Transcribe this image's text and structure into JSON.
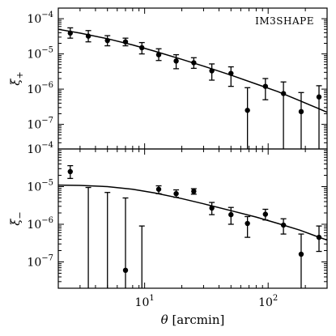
{
  "chart_data": [
    {
      "type": "scatter",
      "panel_tag": "IM3SHAPE",
      "ylabel": "ξ+",
      "xlabel": "",
      "xscale": "log",
      "yscale": "log",
      "xlim": [
        2.0,
        300
      ],
      "ylim": [
        2e-08,
        0.0002
      ],
      "y_tick_labels": [
        {
          "value": 1e-07,
          "base": "10",
          "exp": "−7"
        },
        {
          "value": 1e-06,
          "base": "10",
          "exp": "−6"
        },
        {
          "value": 1e-05,
          "base": "10",
          "exp": "−5"
        },
        {
          "value": 0.0001,
          "base": "10",
          "exp": "−4"
        }
      ],
      "x_tick_labels": [],
      "series": [
        {
          "points": [
            {
              "x": 2.5,
              "y": 3.9e-05,
              "ylo": 2.8e-05,
              "yhi": 5.5e-05
            },
            {
              "x": 3.5,
              "y": 3.2e-05,
              "ylo": 2.2e-05,
              "yhi": 4.6e-05
            },
            {
              "x": 5.0,
              "y": 2.4e-05,
              "ylo": 1.7e-05,
              "yhi": 3.3e-05
            },
            {
              "x": 7.0,
              "y": 2.2e-05,
              "ylo": 1.7e-05,
              "yhi": 2.8e-05
            },
            {
              "x": 9.5,
              "y": 1.5e-05,
              "ylo": 1e-05,
              "yhi": 2.1e-05
            },
            {
              "x": 13,
              "y": 9.5e-06,
              "ylo": 6.5e-06,
              "yhi": 1.4e-05
            },
            {
              "x": 18,
              "y": 6.3e-06,
              "ylo": 3.8e-06,
              "yhi": 9.5e-06
            },
            {
              "x": 25,
              "y": 5.6e-06,
              "ylo": 3.9e-06,
              "yhi": 7.8e-06
            },
            {
              "x": 35,
              "y": 3.3e-06,
              "ylo": 1.8e-06,
              "yhi": 5.2e-06
            },
            {
              "x": 50,
              "y": 2.8e-06,
              "ylo": 1.2e-06,
              "yhi": 4.3e-06
            },
            {
              "x": 68,
              "y": 2.5e-07,
              "ylo": 2e-08,
              "yhi": 1.1e-06
            },
            {
              "x": 95,
              "y": 1.2e-06,
              "ylo": 5e-07,
              "yhi": 2e-06
            },
            {
              "x": 133,
              "y": 7.5e-07,
              "ylo": 2e-08,
              "yhi": 1.6e-06
            },
            {
              "x": 185,
              "y": 2.3e-07,
              "ylo": 2e-08,
              "yhi": 8e-07
            },
            {
              "x": 258,
              "y": 6e-07,
              "ylo": 2e-08,
              "yhi": 1.25e-06
            }
          ]
        }
      ],
      "model_curve": [
        [
          2.0,
          5e-05
        ],
        [
          3.0,
          3.9e-05
        ],
        [
          5.0,
          2.7e-05
        ],
        [
          8.0,
          1.8e-05
        ],
        [
          12,
          1.2e-05
        ],
        [
          20,
          7e-06
        ],
        [
          30,
          4.5e-06
        ],
        [
          50,
          2.5e-06
        ],
        [
          80,
          1.4e-06
        ],
        [
          120,
          8.5e-07
        ],
        [
          180,
          4.7e-07
        ],
        [
          250,
          2.9e-07
        ],
        [
          300,
          2.2e-07
        ]
      ]
    },
    {
      "type": "scatter",
      "panel_tag": "",
      "ylabel": "ξ−",
      "xlabel": "θ [arcmin]",
      "xscale": "log",
      "yscale": "log",
      "xlim": [
        2.0,
        300
      ],
      "ylim": [
        2e-08,
        0.0001
      ],
      "y_tick_labels": [
        {
          "value": 1e-07,
          "base": "10",
          "exp": "−7"
        },
        {
          "value": 1e-06,
          "base": "10",
          "exp": "−6"
        },
        {
          "value": 1e-05,
          "base": "10",
          "exp": "−5"
        },
        {
          "value": 0.0001,
          "base": "10",
          "exp": "−4"
        }
      ],
      "x_tick_labels": [
        {
          "value": 10,
          "base": "10",
          "exp": "1"
        },
        {
          "value": 100,
          "base": "10",
          "exp": "2"
        }
      ],
      "series": [
        {
          "points": [
            {
              "x": 2.5,
              "y": 2.5e-05,
              "ylo": 1.65e-05,
              "yhi": 3.6e-05
            },
            {
              "x": 3.5,
              "y": null,
              "ylo": 2e-08,
              "yhi": 9.5e-06
            },
            {
              "x": 5.0,
              "y": null,
              "ylo": 2e-08,
              "yhi": 7e-06
            },
            {
              "x": 7.0,
              "y": 6e-08,
              "ylo": 2e-08,
              "yhi": 5e-06
            },
            {
              "x": 9.5,
              "y": null,
              "ylo": 2e-08,
              "yhi": 9e-07
            },
            {
              "x": 13,
              "y": 8.5e-06,
              "ylo": 6.5e-06,
              "yhi": 1.05e-05
            },
            {
              "x": 18,
              "y": 6.5e-06,
              "ylo": 5.2e-06,
              "yhi": 8.2e-06
            },
            {
              "x": 25,
              "y": 7.5e-06,
              "ylo": 6.3e-06,
              "yhi": 8.8e-06
            },
            {
              "x": 35,
              "y": 2.7e-06,
              "ylo": 1.8e-06,
              "yhi": 3.8e-06
            },
            {
              "x": 50,
              "y": 1.8e-06,
              "ylo": 1e-06,
              "yhi": 2.8e-06
            },
            {
              "x": 68,
              "y": 1.05e-06,
              "ylo": 4.5e-07,
              "yhi": 1.6e-06
            },
            {
              "x": 95,
              "y": 1.85e-06,
              "ylo": 1.3e-06,
              "yhi": 2.5e-06
            },
            {
              "x": 133,
              "y": 9.5e-07,
              "ylo": 5.5e-07,
              "yhi": 1.4e-06
            },
            {
              "x": 185,
              "y": 1.6e-07,
              "ylo": 2e-08,
              "yhi": 5.5e-07
            },
            {
              "x": 258,
              "y": 4.5e-07,
              "ylo": 1.9e-07,
              "yhi": 9e-07
            }
          ]
        }
      ],
      "model_curve": [
        [
          2.0,
          1.1e-05
        ],
        [
          3.0,
          1.08e-05
        ],
        [
          5.0,
          1e-05
        ],
        [
          8.0,
          8.5e-06
        ],
        [
          12,
          6.8e-06
        ],
        [
          20,
          4.8e-06
        ],
        [
          30,
          3.5e-06
        ],
        [
          50,
          2.3e-06
        ],
        [
          80,
          1.55e-06
        ],
        [
          120,
          1.05e-06
        ],
        [
          180,
          7e-07
        ],
        [
          250,
          4.7e-07
        ],
        [
          300,
          3.8e-07
        ]
      ]
    }
  ]
}
